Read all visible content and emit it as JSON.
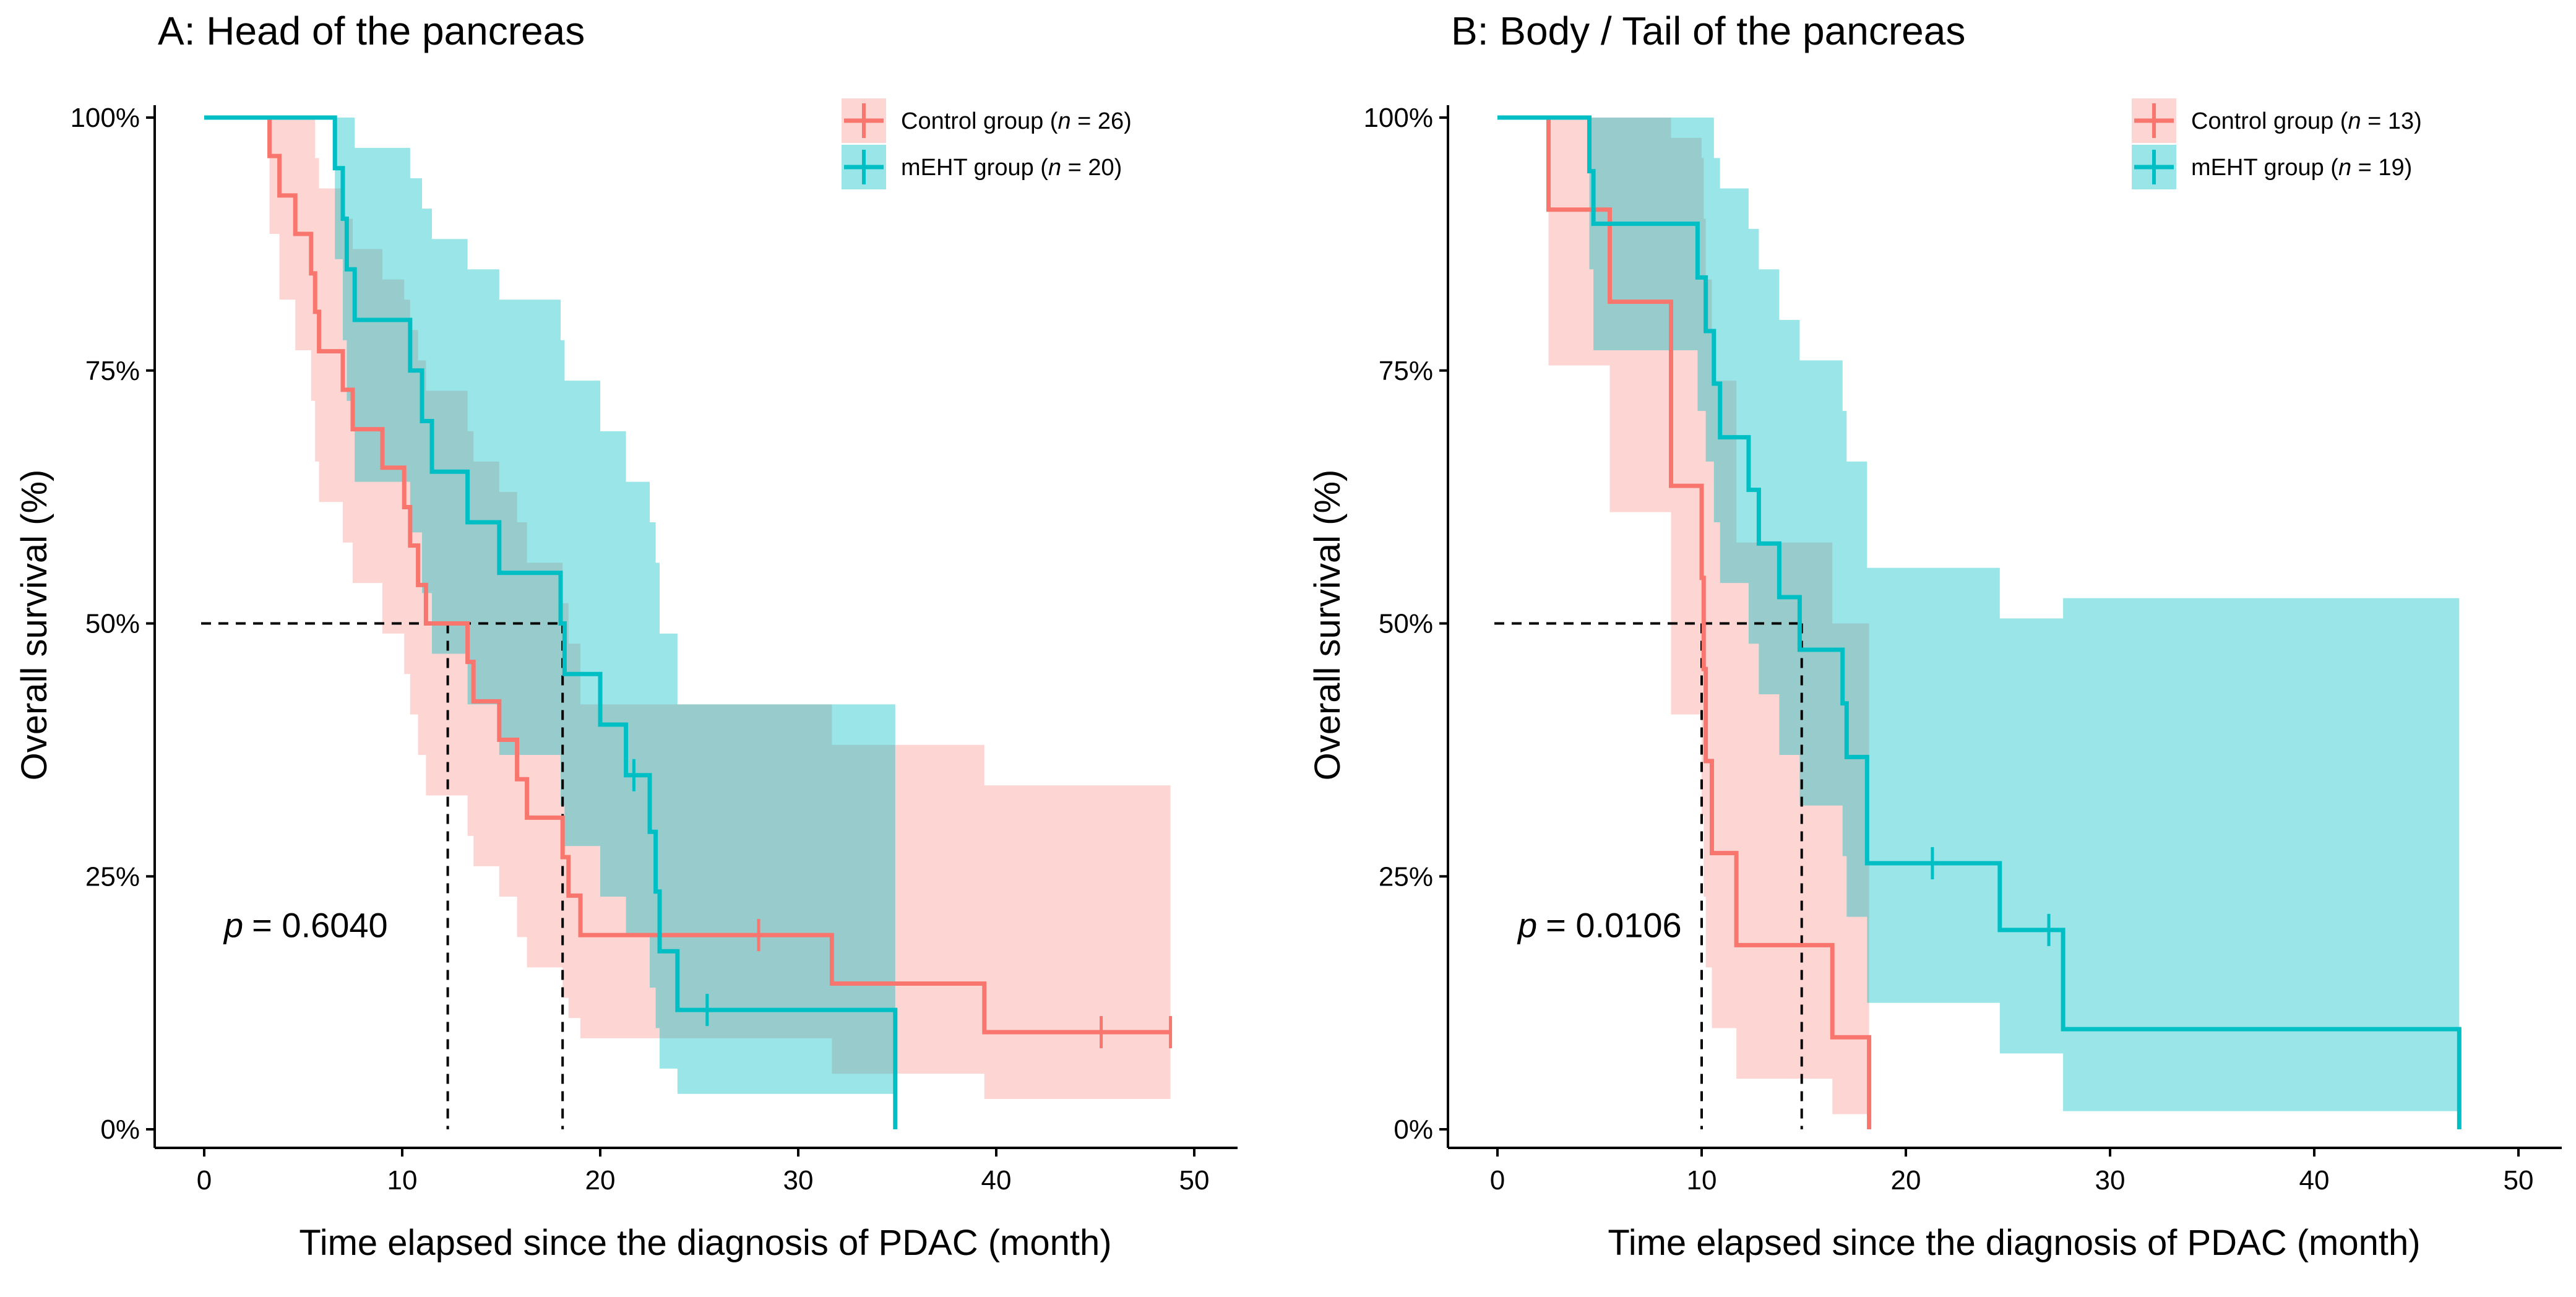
{
  "chart_data": [
    {
      "type": "line",
      "subtype": "kaplan-meier",
      "title": "A: Head of the pancreas",
      "xlabel": "Time elapsed since the diagnosis of PDAC (month)",
      "ylabel": "Overall survival (%)",
      "xlim": [
        0,
        50
      ],
      "ylim": [
        0,
        1
      ],
      "x_ticks": [
        0,
        10,
        20,
        30,
        40,
        50
      ],
      "y_ticks": [
        0,
        0.25,
        0.5,
        0.75,
        1
      ],
      "y_tick_labels": [
        "0%",
        "25%",
        "50%",
        "75%",
        "100%"
      ],
      "x_tick_labels": [
        "0",
        "10",
        "20",
        "30",
        "40",
        "50"
      ],
      "p_value_prefix": "p",
      "p_value": "= 0.6040",
      "p_value_position": {
        "x": 1,
        "y": 0.19
      },
      "median_lines": [
        {
          "series": "Control group",
          "x": 12.3
        },
        {
          "series": "mEHT group",
          "x": 18.1
        }
      ],
      "legend": {
        "position": "top-right"
      },
      "series": [
        {
          "name": "Control group",
          "legend_label": "Control group (",
          "legend_n": "n",
          "legend_suffix": " = 26)",
          "color": "#f8766d",
          "band_color": "#f8766d",
          "steps": [
            [
              0,
              1.0
            ],
            [
              3.3,
              0.962
            ],
            [
              3.8,
              0.923
            ],
            [
              4.6,
              0.885
            ],
            [
              5.4,
              0.846
            ],
            [
              5.6,
              0.808
            ],
            [
              5.8,
              0.769
            ],
            [
              7.0,
              0.731
            ],
            [
              7.5,
              0.692
            ],
            [
              9.0,
              0.654
            ],
            [
              10.1,
              0.615
            ],
            [
              10.4,
              0.577
            ],
            [
              10.8,
              0.538
            ],
            [
              11.2,
              0.5
            ],
            [
              13.3,
              0.462
            ],
            [
              13.6,
              0.423
            ],
            [
              14.9,
              0.385
            ],
            [
              15.8,
              0.346
            ],
            [
              16.3,
              0.308
            ],
            [
              18.1,
              0.269
            ],
            [
              18.4,
              0.231
            ],
            [
              19.0,
              0.192
            ],
            [
              31.7,
              0.144
            ],
            [
              39.4,
              0.096
            ],
            [
              48.8,
              0.096
            ]
          ],
          "censor": [
            [
              28.0,
              0.192
            ],
            [
              45.3,
              0.096
            ],
            [
              48.8,
              0.096
            ]
          ],
          "band": [
            [
              0,
              1.0,
              1.0
            ],
            [
              3.3,
              0.885,
              1.0
            ],
            [
              3.8,
              0.82,
              1.0
            ],
            [
              4.6,
              0.77,
              1.0
            ],
            [
              5.4,
              0.72,
              1.0
            ],
            [
              5.6,
              0.66,
              0.96
            ],
            [
              5.8,
              0.62,
              0.93
            ],
            [
              7.0,
              0.58,
              0.9
            ],
            [
              7.5,
              0.54,
              0.87
            ],
            [
              9.0,
              0.49,
              0.84
            ],
            [
              10.1,
              0.45,
              0.82
            ],
            [
              10.4,
              0.41,
              0.79
            ],
            [
              10.8,
              0.37,
              0.76
            ],
            [
              11.2,
              0.33,
              0.73
            ],
            [
              13.3,
              0.29,
              0.69
            ],
            [
              13.6,
              0.26,
              0.66
            ],
            [
              14.9,
              0.23,
              0.63
            ],
            [
              15.8,
              0.19,
              0.6
            ],
            [
              16.3,
              0.16,
              0.56
            ],
            [
              18.1,
              0.13,
              0.52
            ],
            [
              18.4,
              0.11,
              0.48
            ],
            [
              19.0,
              0.09,
              0.42
            ],
            [
              31.7,
              0.055,
              0.38
            ],
            [
              39.4,
              0.03,
              0.34
            ],
            [
              48.8,
              0.03,
              0.34
            ]
          ]
        },
        {
          "name": "mEHT group",
          "legend_label": "mEHT group (",
          "legend_n": "n",
          "legend_suffix": " = 20)",
          "color": "#00bfc4",
          "band_color": "#00bfc4",
          "steps": [
            [
              0,
              1.0
            ],
            [
              6.6,
              0.95
            ],
            [
              7.0,
              0.9
            ],
            [
              7.2,
              0.85
            ],
            [
              7.6,
              0.8
            ],
            [
              10.4,
              0.75
            ],
            [
              11.0,
              0.7
            ],
            [
              11.5,
              0.65
            ],
            [
              13.3,
              0.6
            ],
            [
              14.9,
              0.55
            ],
            [
              18.0,
              0.5
            ],
            [
              18.2,
              0.45
            ],
            [
              20.0,
              0.4
            ],
            [
              21.3,
              0.35
            ],
            [
              22.5,
              0.294
            ],
            [
              22.8,
              0.235
            ],
            [
              23.0,
              0.176
            ],
            [
              23.9,
              0.118
            ],
            [
              34.9,
              0.0
            ]
          ],
          "censor": [
            [
              21.7,
              0.35
            ],
            [
              25.4,
              0.118
            ]
          ],
          "band": [
            [
              0,
              1.0,
              1.0
            ],
            [
              6.6,
              0.86,
              1.0
            ],
            [
              7.0,
              0.78,
              1.0
            ],
            [
              7.2,
              0.72,
              1.0
            ],
            [
              7.6,
              0.64,
              0.97
            ],
            [
              10.4,
              0.59,
              0.94
            ],
            [
              11.0,
              0.53,
              0.91
            ],
            [
              11.5,
              0.47,
              0.88
            ],
            [
              13.3,
              0.42,
              0.85
            ],
            [
              14.9,
              0.37,
              0.82
            ],
            [
              18.0,
              0.32,
              0.78
            ],
            [
              18.2,
              0.28,
              0.74
            ],
            [
              20.0,
              0.23,
              0.69
            ],
            [
              21.3,
              0.19,
              0.64
            ],
            [
              22.5,
              0.14,
              0.6
            ],
            [
              22.8,
              0.1,
              0.56
            ],
            [
              23.0,
              0.06,
              0.49
            ],
            [
              23.9,
              0.035,
              0.42
            ],
            [
              34.9,
              0.0,
              0.42
            ]
          ]
        }
      ]
    },
    {
      "type": "line",
      "subtype": "kaplan-meier",
      "title": "B: Body / Tail of the pancreas",
      "xlabel": "Time elapsed since the diagnosis of PDAC (month)",
      "ylabel": "Overall survival (%)",
      "xlim": [
        0,
        50
      ],
      "ylim": [
        0,
        1
      ],
      "x_ticks": [
        0,
        10,
        20,
        30,
        40,
        50
      ],
      "y_ticks": [
        0,
        0.25,
        0.5,
        0.75,
        1
      ],
      "y_tick_labels": [
        "0%",
        "25%",
        "50%",
        "75%",
        "100%"
      ],
      "x_tick_labels": [
        "0",
        "10",
        "20",
        "30",
        "40",
        "50"
      ],
      "p_value_prefix": "p",
      "p_value": "= 0.0106",
      "p_value_position": {
        "x": 1,
        "y": 0.19
      },
      "median_lines": [
        {
          "series": "Control group",
          "x": 10.0
        },
        {
          "series": "mEHT group",
          "x": 14.9
        }
      ],
      "legend": {
        "position": "top-right"
      },
      "series": [
        {
          "name": "Control group",
          "legend_label": "Control group (",
          "legend_n": "n",
          "legend_suffix": " = 13)",
          "color": "#f8766d",
          "band_color": "#f8766d",
          "steps": [
            [
              0,
              1.0
            ],
            [
              2.5,
              0.909
            ],
            [
              5.5,
              0.818
            ],
            [
              8.5,
              0.636
            ],
            [
              10.0,
              0.545
            ],
            [
              10.1,
              0.455
            ],
            [
              10.2,
              0.364
            ],
            [
              10.5,
              0.273
            ],
            [
              11.7,
              0.182
            ],
            [
              16.4,
              0.091
            ],
            [
              18.2,
              0.0
            ]
          ],
          "censor": [],
          "band": [
            [
              0,
              1.0,
              1.0
            ],
            [
              2.5,
              0.755,
              1.0
            ],
            [
              5.5,
              0.61,
              1.0
            ],
            [
              8.5,
              0.41,
              0.98
            ],
            [
              10.0,
              0.31,
              0.96
            ],
            [
              10.1,
              0.23,
              0.9
            ],
            [
              10.2,
              0.16,
              0.84
            ],
            [
              10.5,
              0.1,
              0.74
            ],
            [
              11.7,
              0.05,
              0.58
            ],
            [
              16.4,
              0.015,
              0.5
            ],
            [
              18.2,
              0.0,
              0.5
            ]
          ]
        },
        {
          "name": "mEHT group",
          "legend_label": "mEHT group (",
          "legend_n": "n",
          "legend_suffix": " = 19)",
          "color": "#00bfc4",
          "band_color": "#00bfc4",
          "steps": [
            [
              0,
              1.0
            ],
            [
              4.5,
              0.947
            ],
            [
              4.7,
              0.895
            ],
            [
              9.8,
              0.842
            ],
            [
              10.2,
              0.789
            ],
            [
              10.6,
              0.737
            ],
            [
              10.9,
              0.684
            ],
            [
              12.3,
              0.632
            ],
            [
              12.8,
              0.579
            ],
            [
              13.8,
              0.526
            ],
            [
              14.8,
              0.474
            ],
            [
              16.9,
              0.421
            ],
            [
              17.1,
              0.368
            ],
            [
              18.1,
              0.263
            ],
            [
              24.6,
              0.197
            ],
            [
              27.7,
              0.099
            ],
            [
              47.1,
              0.0
            ]
          ],
          "censor": [
            [
              21.3,
              0.263
            ],
            [
              27.0,
              0.197
            ]
          ],
          "band": [
            [
              0,
              1.0,
              1.0
            ],
            [
              4.5,
              0.85,
              1.0
            ],
            [
              4.7,
              0.77,
              1.0
            ],
            [
              9.8,
              0.71,
              1.0
            ],
            [
              10.2,
              0.66,
              1.0
            ],
            [
              10.6,
              0.6,
              0.96
            ],
            [
              10.9,
              0.54,
              0.93
            ],
            [
              12.3,
              0.48,
              0.89
            ],
            [
              12.8,
              0.43,
              0.85
            ],
            [
              13.8,
              0.37,
              0.8
            ],
            [
              14.8,
              0.32,
              0.76
            ],
            [
              16.9,
              0.27,
              0.71
            ],
            [
              17.1,
              0.21,
              0.66
            ],
            [
              18.1,
              0.125,
              0.555
            ],
            [
              24.6,
              0.075,
              0.505
            ],
            [
              27.7,
              0.018,
              0.525
            ],
            [
              47.1,
              0.0,
              0.525
            ]
          ]
        }
      ]
    }
  ]
}
